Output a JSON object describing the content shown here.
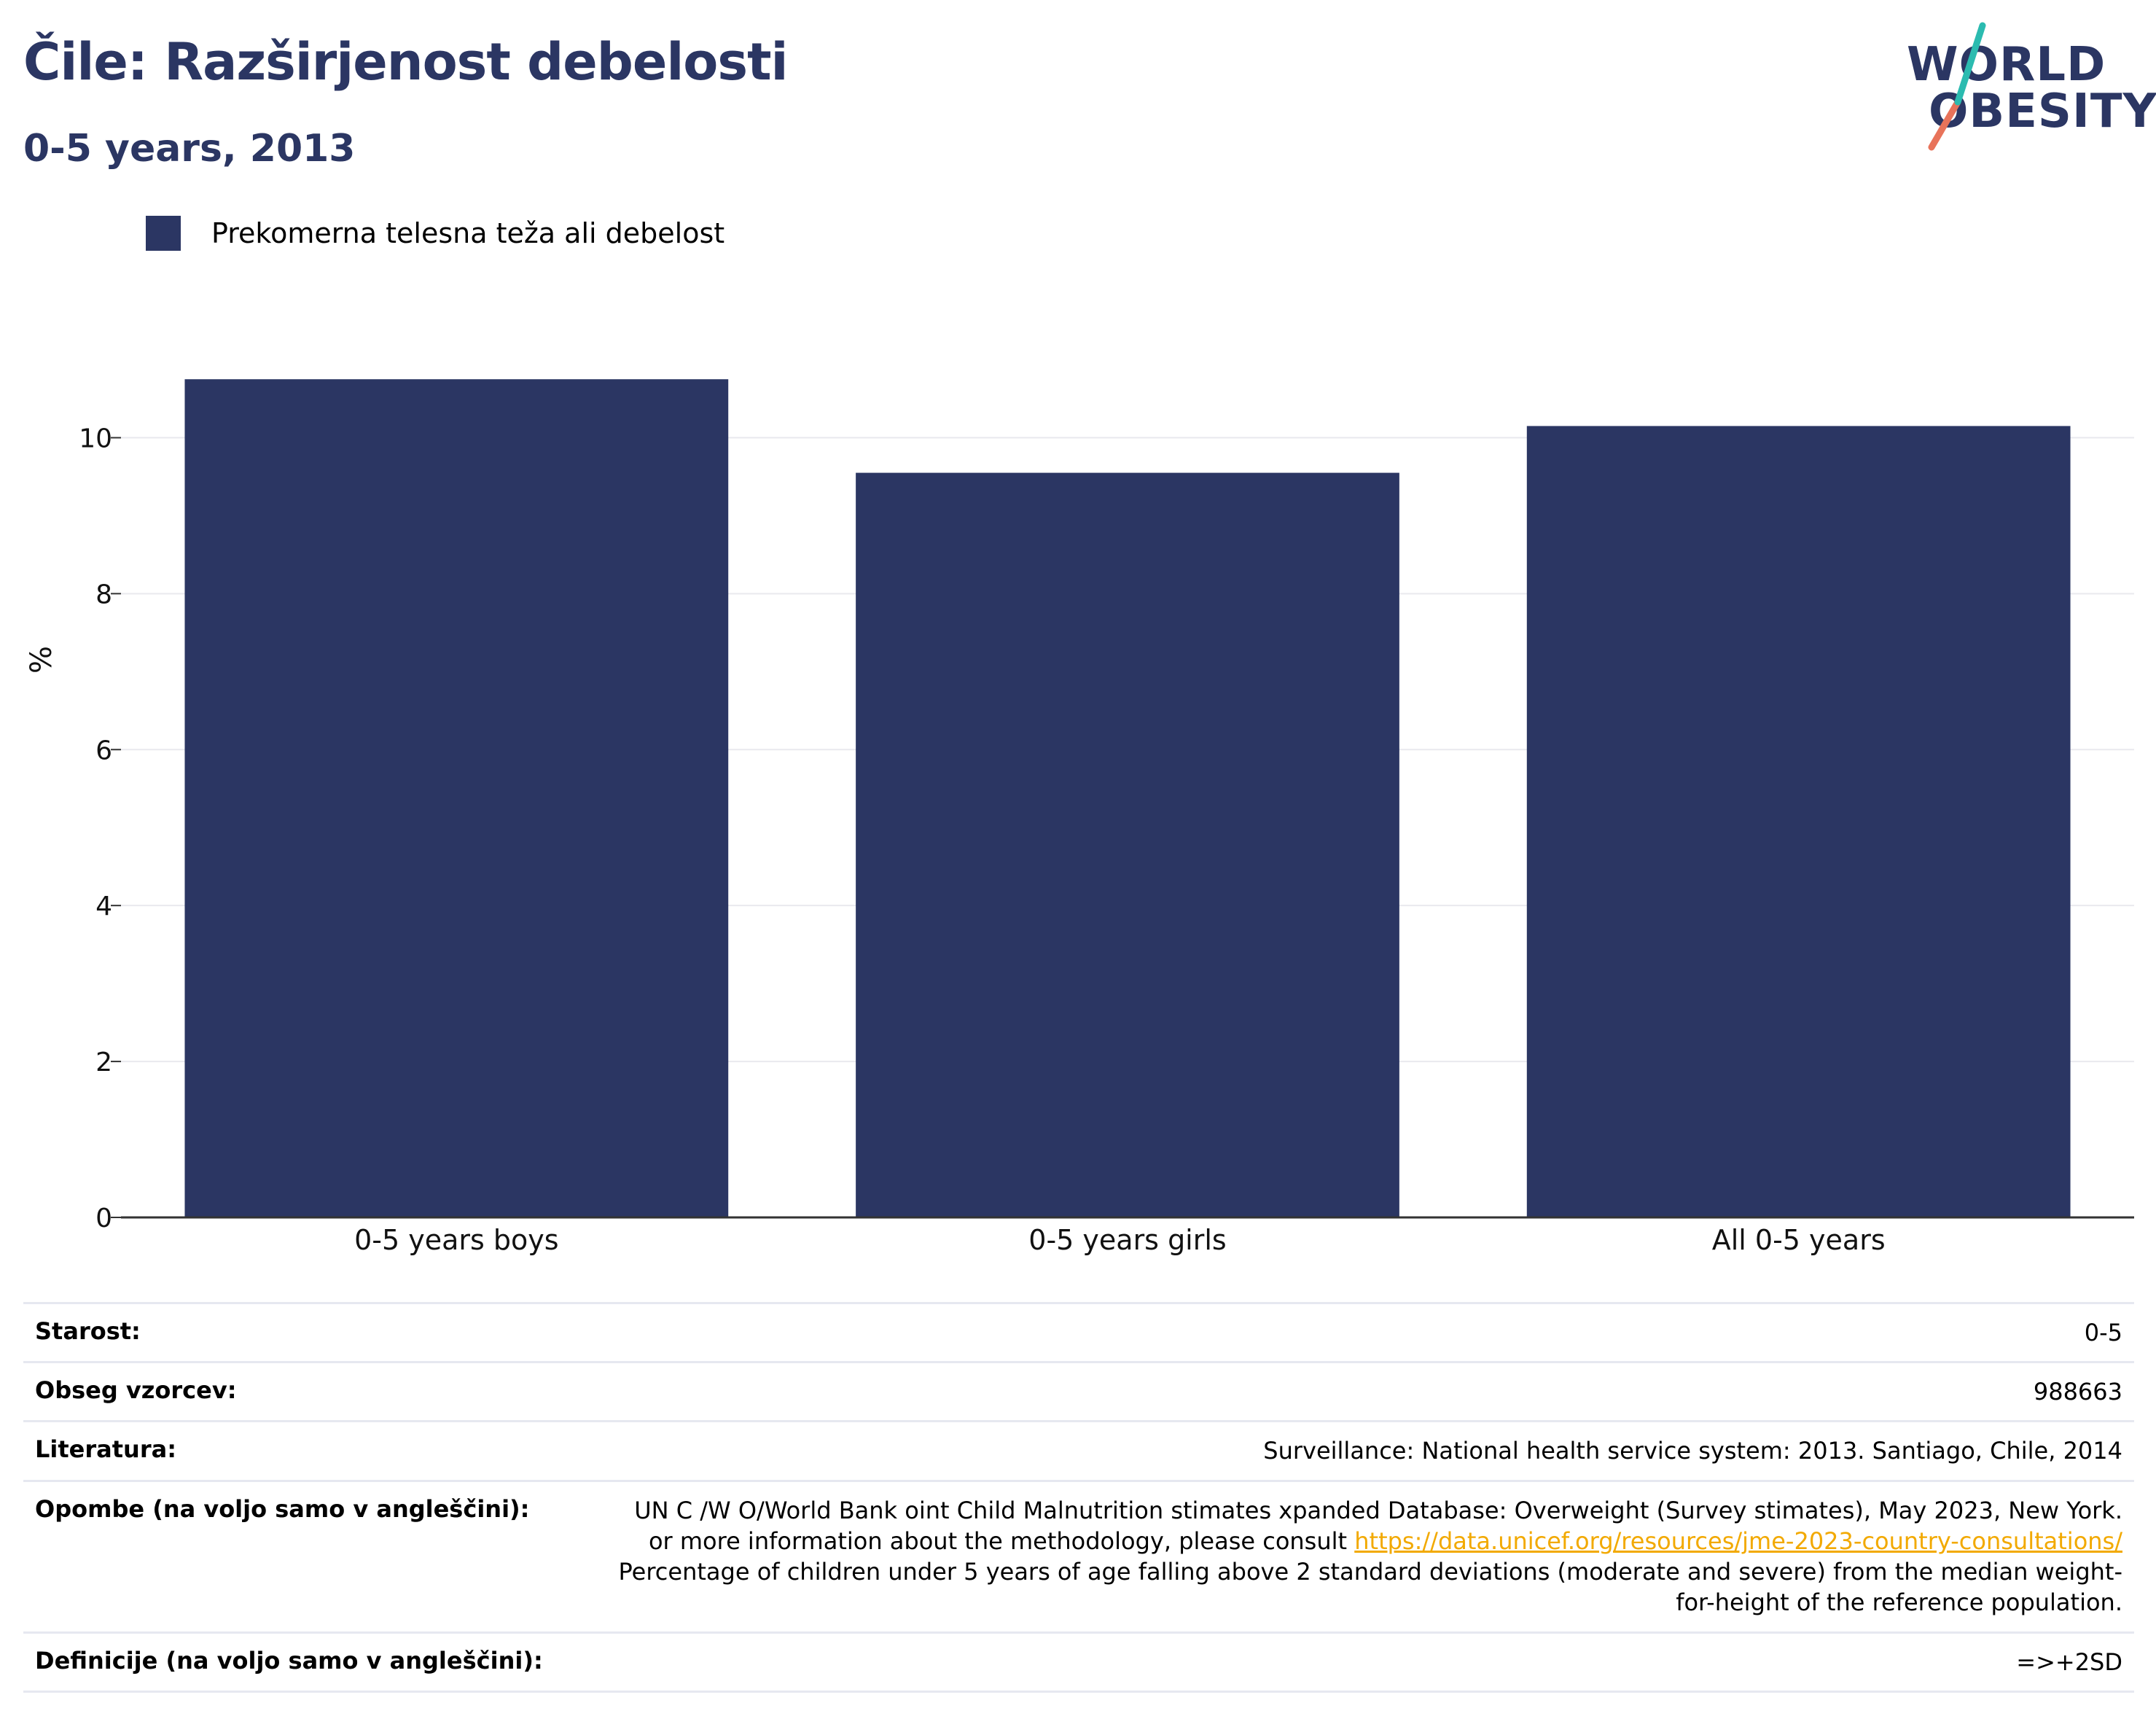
{
  "header": {
    "title": "Čile: Razširjenost debelosti",
    "subtitle": "0-5 years, 2013",
    "logo_line1": "WORLD",
    "logo_line2": "OBESITY"
  },
  "legend": {
    "label": "Prekomerna telesna teža ali debelost"
  },
  "colors": {
    "bar": "#2b3663",
    "title": "#2b3663",
    "link": "#f2a900",
    "grid": "#e9e9ee",
    "logo_slash_top": "#2bbbb0",
    "logo_slash_bottom": "#e8735a"
  },
  "chart_data": {
    "type": "bar",
    "title": "Čile: Razširjenost debelosti",
    "subtitle": "0-5 years, 2013",
    "categories": [
      "0-5 years boys",
      "0-5 years girls",
      "All 0-5 years"
    ],
    "series": [
      {
        "name": "Prekomerna telesna teža ali debelost",
        "values": [
          10.75,
          9.55,
          10.15
        ]
      }
    ],
    "ylabel": "%",
    "xlabel": "",
    "ylim": [
      0,
      11.5
    ],
    "yticks": [
      "0",
      "2",
      "4",
      "6",
      "8",
      "10"
    ],
    "grid": true,
    "legend_position": "top-left"
  },
  "info": {
    "rows": [
      {
        "key": "Starost:",
        "value": "0-5"
      },
      {
        "key": "Obseg vzorcev:",
        "value": "988663"
      },
      {
        "key": "Literatura:",
        "value": "Surveillance: National health service system: 2013. Santiago, Chile, 2014"
      },
      {
        "key": "Definicije (na voljo samo v angleščini):",
        "value": "=>+2SD"
      }
    ],
    "notes": {
      "key": "Opombe (na voljo samo v angleščini):",
      "text_before": "UN C  /W   O/World Bank  oint Child Malnutrition   stimates   xpanded Database: Overweight (Survey   stimates), May 2023, New York.  or more information about the methodology, please consult ",
      "link": "https://data.unicef.org/resources/jme-2023-country-consultations/",
      "text_after": " Percentage of children under 5 years of age falling above 2 standard deviations (moderate and severe) from the median weight-for-height of the reference population."
    }
  }
}
